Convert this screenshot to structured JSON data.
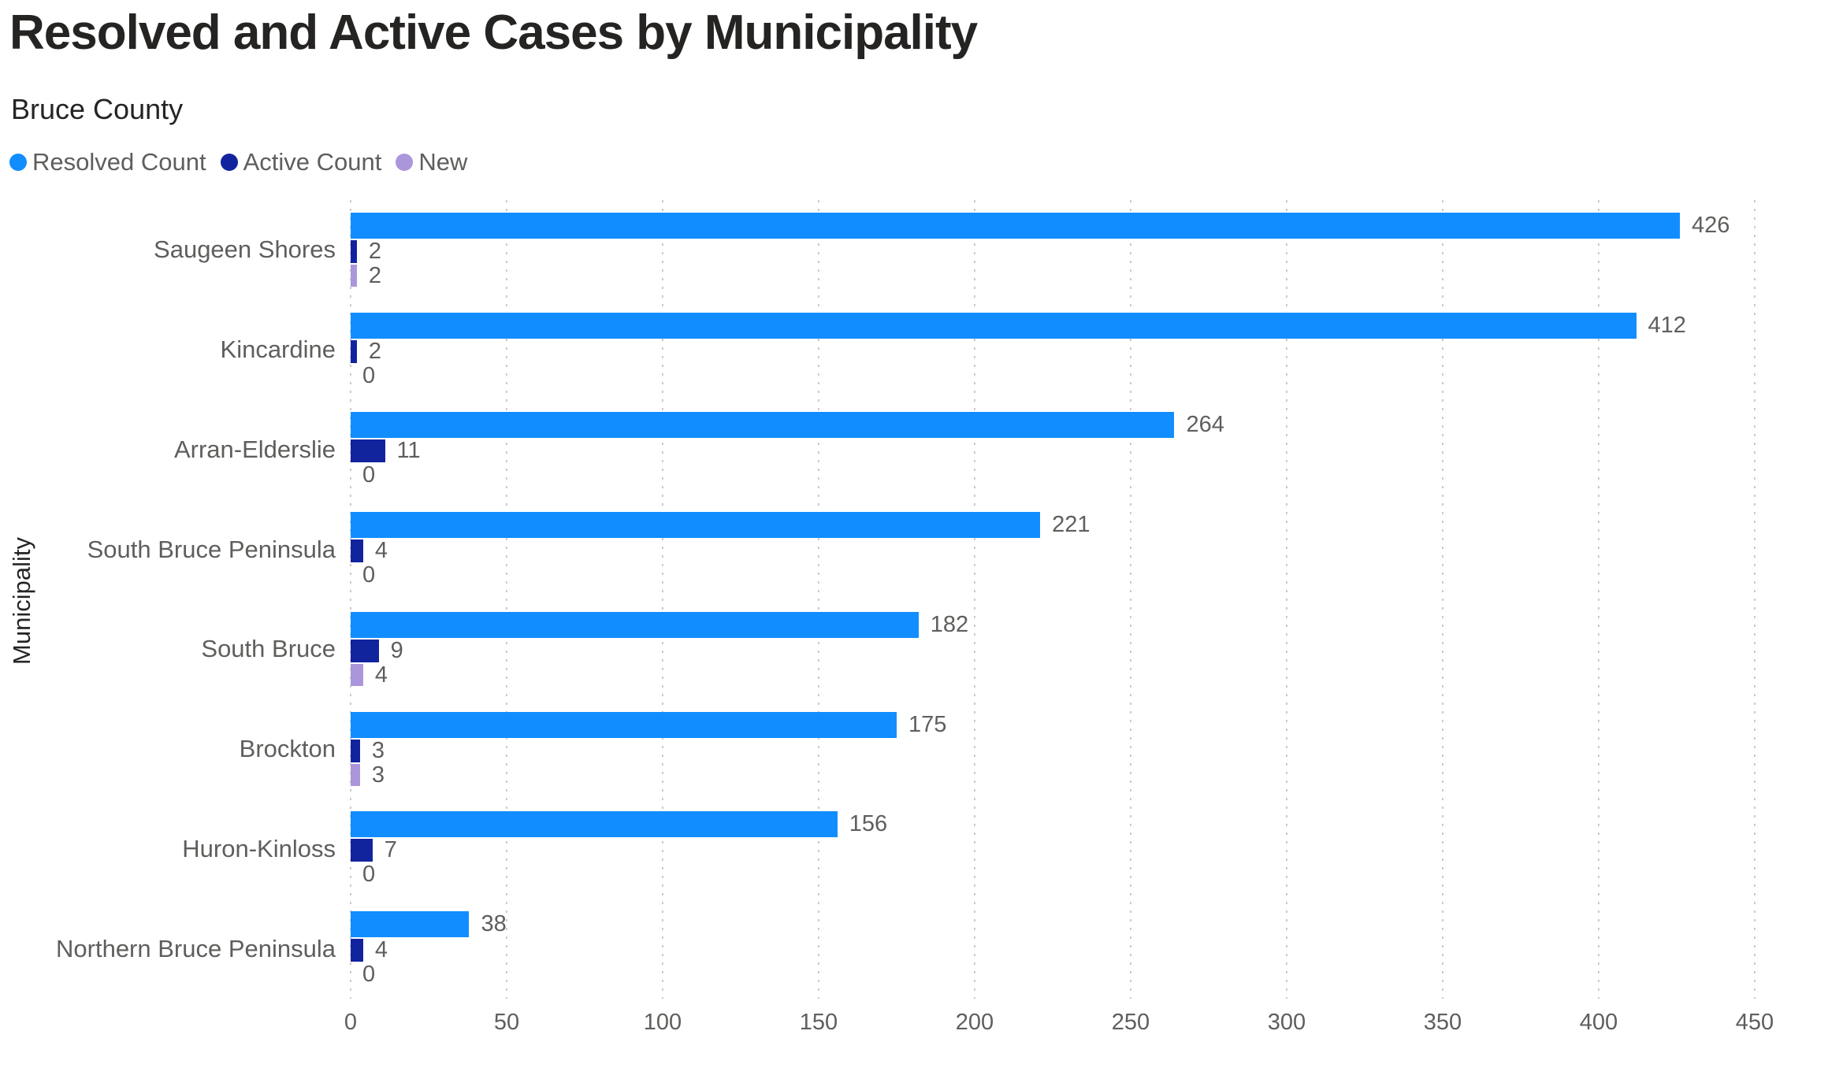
{
  "header": {
    "title": "Resolved and Active Cases by Municipality",
    "subtitle": "Bruce County"
  },
  "colors": {
    "resolved": "#118DFF",
    "active": "#12239E",
    "new": "#AC96DB",
    "text_muted": "#605E5C",
    "text_dark": "#252423",
    "gridline": "#CDCBC9"
  },
  "chart_data": {
    "type": "bar",
    "orientation": "horizontal",
    "title": "Resolved and Active Cases by Municipality",
    "subtitle": "Bruce County",
    "xlabel": "",
    "ylabel": "Municipality",
    "categories": [
      "Saugeen Shores",
      "Kincardine",
      "Arran-Elderslie",
      "South Bruce Peninsula",
      "South Bruce",
      "Brockton",
      "Huron-Kinloss",
      "Northern Bruce Peninsula"
    ],
    "series": [
      {
        "name": "Resolved Count",
        "color": "#118DFF",
        "values": [
          426,
          412,
          264,
          221,
          182,
          175,
          156,
          38
        ]
      },
      {
        "name": "Active Count",
        "color": "#12239E",
        "values": [
          2,
          2,
          11,
          4,
          9,
          3,
          7,
          4
        ]
      },
      {
        "name": "New",
        "color": "#AC96DB",
        "values": [
          2,
          0,
          0,
          0,
          4,
          3,
          0,
          0
        ]
      }
    ],
    "xlim": [
      0,
      450
    ],
    "xticks": [
      0,
      50,
      100,
      150,
      200,
      250,
      300,
      350,
      400,
      450
    ],
    "grid": "vertical-dotted",
    "legend_position": "top-left",
    "data_labels": true
  }
}
